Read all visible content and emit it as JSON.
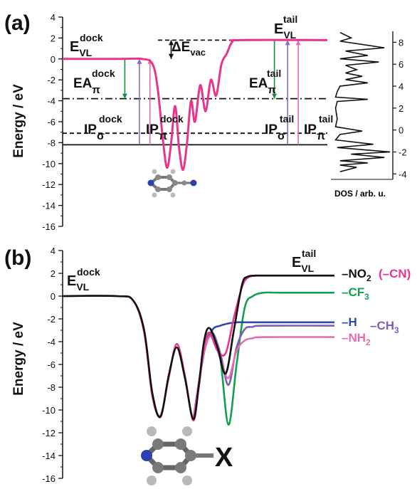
{
  "chart_data": [
    {
      "panel": "(a)",
      "type": "line",
      "ylabel": "Energy / eV",
      "ylim": [
        -16,
        4
      ],
      "yticks": [
        4,
        2,
        0,
        -2,
        -4,
        -6,
        -8,
        -10,
        -12,
        -14,
        -16
      ],
      "series": [
        {
          "color": "#e8358c",
          "x": [
            0.0,
            0.22,
            0.3,
            0.34,
            0.36,
            0.38,
            0.395,
            0.41,
            0.425,
            0.44,
            0.455,
            0.47,
            0.485,
            0.5,
            0.52,
            0.54,
            0.56,
            0.58,
            0.6,
            0.62,
            0.64,
            0.67,
            1.0
          ],
          "y": [
            0.0,
            0.0,
            0.0,
            -0.5,
            -3,
            -8,
            -10.4,
            -8,
            -4.5,
            -8.5,
            -10.6,
            -8,
            -4,
            -6,
            -2.5,
            -5,
            -2,
            -3.5,
            -0.5,
            0.5,
            1.6,
            1.8,
            1.8
          ]
        }
      ],
      "hlines": [
        {
          "y": 1.8,
          "style": "dashed",
          "x": [
            0.36,
            1.0
          ]
        },
        {
          "y": -3.8,
          "style": "dashdot",
          "x": [
            0.0,
            1.0
          ]
        },
        {
          "y": -7.1,
          "style": "dashed",
          "x": [
            0.0,
            1.0
          ]
        },
        {
          "y": -8.2,
          "style": "solid",
          "x": [
            0.0,
            1.0
          ]
        }
      ],
      "arrows": [
        {
          "x": 0.235,
          "from": 0.0,
          "to": -3.8,
          "color": "#119146"
        },
        {
          "x": 0.29,
          "from": -8.2,
          "to": 0.0,
          "color": "#8b67c9"
        },
        {
          "x": 0.33,
          "from": -8.2,
          "to": 0.0,
          "color": "#e36fb2"
        },
        {
          "x": 0.8,
          "from": 1.8,
          "to": -3.8,
          "color": "#119146"
        },
        {
          "x": 0.85,
          "from": -8.2,
          "to": 1.8,
          "color": "#8b67c9"
        },
        {
          "x": 0.89,
          "from": -8.2,
          "to": 1.8,
          "color": "#e36fb2"
        },
        {
          "x": 0.41,
          "from": 1.8,
          "to": 0.0,
          "color": "#111111",
          "double": true
        }
      ],
      "labels": {
        "dock_vl": {
          "main": "E",
          "sub": "VL",
          "sup": "dock"
        },
        "tail_vl": {
          "main": "E",
          "sub": "VL",
          "sup": "tail"
        },
        "delta_vac": {
          "prefix": "ΔE",
          "sub": "vac"
        },
        "ea_dock": {
          "main": "EA",
          "sub": "π",
          "sup": "dock"
        },
        "ip_sigma_dock": {
          "main": "IP",
          "sub": "σ",
          "sup": "dock"
        },
        "ip_pi_dock": {
          "main": "IP",
          "sub": "π",
          "sup": "dock"
        },
        "ea_tail": {
          "main": "EA",
          "sub": "π",
          "sup": "tail"
        },
        "ip_sigma_tail": {
          "main": "IP",
          "sub": "σ",
          "sup": "tail"
        },
        "ip_pi_tail": {
          "main": "IP",
          "sub": "π",
          "sup": "tail"
        }
      },
      "dos": {
        "xlabel": "DOS / arb. u.",
        "ylim": [
          -4.5,
          9
        ],
        "yticks": [
          8,
          6,
          4,
          2,
          0,
          -2,
          -4
        ],
        "x": [
          0.1,
          0.3,
          0.1,
          0.9,
          0.2,
          0.6,
          0.1,
          0.8,
          0.2,
          0.4,
          0.2,
          0.5,
          0.2,
          0.6,
          0.1,
          0.05,
          0.02,
          0.6,
          0.05,
          0.02,
          0.05,
          0.02,
          0.5,
          0.1,
          0.02,
          0.7,
          0.05,
          1.0,
          0.3,
          0.9,
          0.1,
          0.6,
          0.1,
          0.4,
          0.1
        ],
        "y": [
          8.9,
          8.4,
          8.1,
          7.5,
          7.2,
          6.8,
          6.5,
          6.2,
          5.9,
          5.5,
          5.2,
          4.9,
          4.6,
          4.3,
          4.0,
          3.5,
          3.0,
          2.8,
          2.6,
          2.0,
          1.0,
          0.3,
          -0.1,
          -0.4,
          -0.9,
          -1.3,
          -1.6,
          -2.0,
          -2.2,
          -2.5,
          -2.8,
          -3.0,
          -3.2,
          -3.4,
          -3.8
        ]
      }
    },
    {
      "panel": "(b)",
      "type": "line",
      "ylabel": "Energy / eV",
      "ylim": [
        -16,
        4
      ],
      "yticks": [
        4,
        2,
        0,
        -2,
        -4,
        -6,
        -8,
        -10,
        -12,
        -14,
        -16
      ],
      "series": [
        {
          "name": "–NO2",
          "color": "#111111",
          "x": [
            0,
            0.2,
            0.26,
            0.3,
            0.33,
            0.36,
            0.39,
            0.42,
            0.45,
            0.48,
            0.5,
            0.52,
            0.54,
            0.57,
            0.6,
            0.63,
            0.66,
            0.68,
            0.71,
            0.74,
            1.0
          ],
          "y": [
            0,
            0,
            -0.4,
            -3,
            -8.5,
            -10.6,
            -7,
            -4.5,
            -7.2,
            -10.8,
            -8,
            -4,
            -2.8,
            -4.5,
            -6.8,
            -3,
            1.0,
            1.7,
            1.8,
            1.8,
            1.8
          ]
        },
        {
          "name": "(–CN)",
          "color": "#e8358c",
          "x": [
            0,
            0.2,
            0.26,
            0.3,
            0.33,
            0.36,
            0.39,
            0.42,
            0.45,
            0.48,
            0.5,
            0.52,
            0.54,
            0.57,
            0.6,
            0.63,
            0.66,
            0.68,
            0.71,
            0.74,
            1.0
          ],
          "y": [
            0,
            0,
            -0.4,
            -3.2,
            -8.8,
            -10.5,
            -7.2,
            -4.2,
            -7,
            -10.9,
            -8.2,
            -4.5,
            -3.2,
            -4.8,
            -5,
            -1.9,
            0.8,
            1.6,
            1.8,
            1.8,
            1.8
          ]
        },
        {
          "name": "–CF3",
          "color": "#11a04e",
          "x": [
            0.48,
            0.52,
            0.55,
            0.58,
            0.61,
            0.64,
            0.67,
            0.7,
            0.74,
            0.8,
            1.0
          ],
          "y": [
            -10.9,
            -5,
            -3.2,
            -5.5,
            -11.3,
            -6,
            -1.0,
            0.0,
            0.3,
            0.3,
            0.3
          ]
        },
        {
          "name": "–H",
          "color": "#2e4aa8",
          "x": [
            0.48,
            0.52,
            0.55,
            0.58,
            0.61,
            0.64,
            0.66,
            0.7,
            0.74,
            1.0
          ],
          "y": [
            -10.9,
            -5,
            -3.0,
            -2.6,
            -2.4,
            -2.3,
            -2.3,
            -2.3,
            -2.3,
            -2.3
          ]
        },
        {
          "name": "–CH3",
          "color": "#7e5fb6",
          "x": [
            0.48,
            0.52,
            0.55,
            0.58,
            0.61,
            0.64,
            0.67,
            0.7,
            0.74,
            1.0
          ],
          "y": [
            -10.9,
            -5,
            -3.3,
            -5,
            -7.8,
            -4.5,
            -2.9,
            -2.7,
            -2.6,
            -2.6
          ]
        },
        {
          "name": "–NH2",
          "color": "#e36fb2",
          "x": [
            0.48,
            0.52,
            0.55,
            0.58,
            0.61,
            0.64,
            0.67,
            0.7,
            0.74,
            1.0
          ],
          "y": [
            -10.9,
            -5,
            -3.5,
            -5.5,
            -7.2,
            -4.8,
            -3.9,
            -3.7,
            -3.6,
            -3.6
          ]
        }
      ],
      "labels": {
        "dock_vl": {
          "main": "E",
          "sub": "VL",
          "sup": "dock"
        },
        "tail_vl": {
          "main": "E",
          "sub": "VL",
          "sup": "tail"
        },
        "molecule_x": "X"
      },
      "legend_entries": [
        {
          "text": "–NO",
          "sub": "2",
          "color": "#111111"
        },
        {
          "text": "(–CN)",
          "color": "#e8358c"
        },
        {
          "text": "–CF",
          "sub": "3",
          "color": "#11a04e"
        },
        {
          "text": "–H",
          "color": "#2e4aa8"
        },
        {
          "text": "–CH",
          "sub": "3",
          "color": "#7e5fb6"
        },
        {
          "text": "–NH",
          "sub": "2",
          "color": "#e36fb2"
        }
      ]
    }
  ]
}
